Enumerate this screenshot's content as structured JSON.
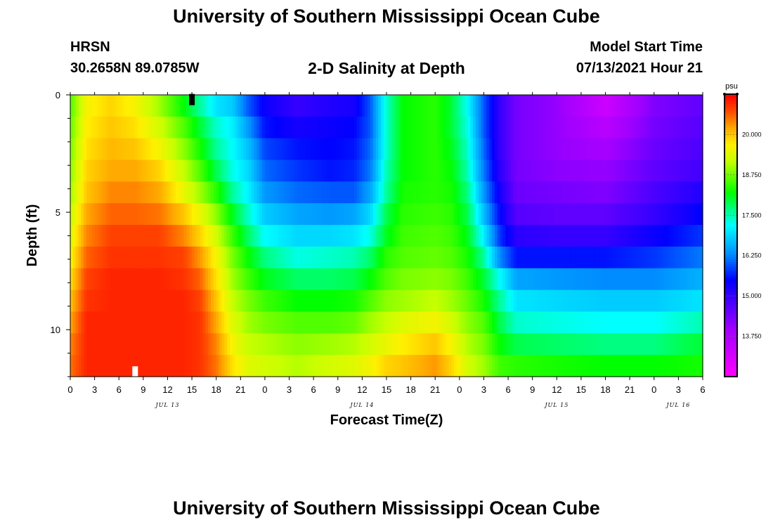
{
  "header": {
    "title": "University of Southern Mississippi Ocean Cube",
    "station": "HRSN",
    "coords": "30.2658N  89.0785W",
    "chart_title": "2-D Salinity at Depth",
    "start_label": "Model Start Time",
    "start_value": "07/13/2021 Hour 21"
  },
  "footer": {
    "title": "University of Southern Mississippi Ocean Cube"
  },
  "chart_data": {
    "type": "heatmap",
    "title": "2-D Salinity at Depth",
    "xlabel": "Forecast Time(Z)",
    "ylabel": "Depth (ft)",
    "x_range_hours": [
      0,
      78
    ],
    "x_ticks": [
      "0",
      "3",
      "6",
      "9",
      "12",
      "15",
      "18",
      "21",
      "0",
      "3",
      "6",
      "9",
      "12",
      "15",
      "18",
      "21",
      "0",
      "3",
      "6",
      "9",
      "12",
      "15",
      "18",
      "21",
      "0",
      "3",
      "6"
    ],
    "date_labels": [
      {
        "label": "JUL 13",
        "hour": 12
      },
      {
        "label": "JUL 14",
        "hour": 36
      },
      {
        "label": "JUL 15",
        "hour": 60
      },
      {
        "label": "JUL 16",
        "hour": 75
      }
    ],
    "y_range_ft": [
      0,
      12
    ],
    "y_ticks": [
      "0",
      "5",
      "10"
    ],
    "y_tick_values": [
      0,
      5,
      10
    ],
    "colorbar": {
      "unit": "psu",
      "min": 12.5,
      "max": 21.25,
      "labels": [
        "20.000",
        "18.750",
        "17.500",
        "16.250",
        "15.000",
        "13.750"
      ],
      "label_values": [
        20.0,
        18.75,
        17.5,
        16.25,
        15.0,
        13.75
      ]
    },
    "markers": [
      {
        "hour": 8,
        "depth_ft": 11.8,
        "color": "#ffffff"
      },
      {
        "hour": 15,
        "depth_ft": 0.2,
        "color": "#000000"
      }
    ],
    "salinity_profiles": [
      {
        "hour": 0,
        "values": [
          18.6,
          18.7,
          18.8,
          18.9,
          19.0,
          19.2,
          19.4,
          19.6,
          19.8,
          20.0,
          20.2,
          20.4,
          20.5
        ]
      },
      {
        "hour": 2,
        "values": [
          19.6,
          19.7,
          19.8,
          19.9,
          20.0,
          20.2,
          20.4,
          20.6,
          20.8,
          20.9,
          21.0,
          21.0,
          21.0
        ]
      },
      {
        "hour": 5,
        "values": [
          19.9,
          20.0,
          20.1,
          20.2,
          20.4,
          20.6,
          20.8,
          20.9,
          21.0,
          21.0,
          21.0,
          21.0,
          21.0
        ]
      },
      {
        "hour": 8,
        "values": [
          19.6,
          19.8,
          20.0,
          20.2,
          20.4,
          20.6,
          20.8,
          20.9,
          21.0,
          21.0,
          21.0,
          21.0,
          21.0
        ]
      },
      {
        "hour": 11,
        "values": [
          19.0,
          19.3,
          19.6,
          19.9,
          20.2,
          20.5,
          20.8,
          20.9,
          21.0,
          21.0,
          21.0,
          21.0,
          21.0
        ]
      },
      {
        "hour": 14,
        "values": [
          18.2,
          18.6,
          18.9,
          19.2,
          19.5,
          20.0,
          20.4,
          20.8,
          20.9,
          21.0,
          21.0,
          21.0,
          21.0
        ]
      },
      {
        "hour": 16,
        "values": [
          17.6,
          18.0,
          18.3,
          18.6,
          19.0,
          19.5,
          19.9,
          20.3,
          20.6,
          20.8,
          20.9,
          20.9,
          20.9
        ]
      },
      {
        "hour": 18,
        "values": [
          17.0,
          17.4,
          17.6,
          17.9,
          18.4,
          18.9,
          19.3,
          19.6,
          19.8,
          20.0,
          20.2,
          20.4,
          20.5
        ]
      },
      {
        "hour": 20,
        "values": [
          16.8,
          17.1,
          17.2,
          17.3,
          17.6,
          18.1,
          18.5,
          18.8,
          19.0,
          19.2,
          19.4,
          19.6,
          19.8
        ]
      },
      {
        "hour": 22,
        "values": [
          16.0,
          16.4,
          16.7,
          16.9,
          17.1,
          17.4,
          17.8,
          18.2,
          18.5,
          18.8,
          19.0,
          19.2,
          19.4
        ]
      },
      {
        "hour": 24,
        "values": [
          15.4,
          15.6,
          15.9,
          16.1,
          16.4,
          16.8,
          17.2,
          17.7,
          18.1,
          18.5,
          18.8,
          19.1,
          19.3
        ]
      },
      {
        "hour": 28,
        "values": [
          15.0,
          15.3,
          15.6,
          15.8,
          16.1,
          16.5,
          16.9,
          17.3,
          17.8,
          18.2,
          18.6,
          18.9,
          19.1
        ]
      },
      {
        "hour": 32,
        "values": [
          15.2,
          15.4,
          15.5,
          15.6,
          16.0,
          16.4,
          16.9,
          17.4,
          17.8,
          18.2,
          18.6,
          19.0,
          19.3
        ]
      },
      {
        "hour": 35,
        "values": [
          15.3,
          15.5,
          15.6,
          15.7,
          16.0,
          16.5,
          17.0,
          17.5,
          17.9,
          18.3,
          18.7,
          19.1,
          19.4
        ]
      },
      {
        "hour": 37,
        "values": [
          16.0,
          16.0,
          16.1,
          16.2,
          16.5,
          16.9,
          17.3,
          17.8,
          18.2,
          18.6,
          19.0,
          19.3,
          19.6
        ]
      },
      {
        "hour": 39,
        "values": [
          17.4,
          17.4,
          17.4,
          17.5,
          17.6,
          17.9,
          18.1,
          18.4,
          18.6,
          18.9,
          19.2,
          19.5,
          19.9
        ]
      },
      {
        "hour": 41,
        "values": [
          18.2,
          18.2,
          18.2,
          18.2,
          18.3,
          18.4,
          18.5,
          18.6,
          18.8,
          19.0,
          19.4,
          19.7,
          20.0
        ]
      },
      {
        "hour": 45,
        "values": [
          18.4,
          18.4,
          18.4,
          18.4,
          18.4,
          18.5,
          18.6,
          18.7,
          18.9,
          19.2,
          19.6,
          20.0,
          20.3
        ]
      },
      {
        "hour": 47,
        "values": [
          18.0,
          18.0,
          18.1,
          18.2,
          18.3,
          18.4,
          18.5,
          18.6,
          18.8,
          19.0,
          19.3,
          19.6,
          19.9
        ]
      },
      {
        "hour": 49,
        "values": [
          17.2,
          17.3,
          17.4,
          17.5,
          17.7,
          17.9,
          18.1,
          18.3,
          18.5,
          18.7,
          18.9,
          19.1,
          19.3
        ]
      },
      {
        "hour": 51,
        "values": [
          16.0,
          16.0,
          16.1,
          16.2,
          16.4,
          16.7,
          17.1,
          17.6,
          18.0,
          18.3,
          18.6,
          18.8,
          19.0
        ]
      },
      {
        "hour": 53,
        "values": [
          15.0,
          15.0,
          15.0,
          15.1,
          15.3,
          15.5,
          15.8,
          16.3,
          17.2,
          17.6,
          17.9,
          18.2,
          18.5
        ]
      },
      {
        "hour": 55,
        "values": [
          14.4,
          14.4,
          14.4,
          14.4,
          14.5,
          14.7,
          15.1,
          15.6,
          16.5,
          17.0,
          17.4,
          17.9,
          18.4
        ]
      },
      {
        "hour": 60,
        "values": [
          14.1,
          14.1,
          14.1,
          14.2,
          14.4,
          14.6,
          15.0,
          15.6,
          16.4,
          16.9,
          17.3,
          17.8,
          18.3
        ]
      },
      {
        "hour": 66,
        "values": [
          13.3,
          13.6,
          13.9,
          14.1,
          14.3,
          14.6,
          15.0,
          15.6,
          16.3,
          16.8,
          17.2,
          17.7,
          18.2
        ]
      },
      {
        "hour": 72,
        "values": [
          14.3,
          14.4,
          14.5,
          14.6,
          14.8,
          15.0,
          15.4,
          15.8,
          16.3,
          16.8,
          17.2,
          17.7,
          18.2
        ]
      },
      {
        "hour": 78,
        "values": [
          14.6,
          14.7,
          14.8,
          14.9,
          15.2,
          15.5,
          15.8,
          16.2,
          16.6,
          17.0,
          17.5,
          18.0,
          18.3
        ]
      }
    ]
  }
}
